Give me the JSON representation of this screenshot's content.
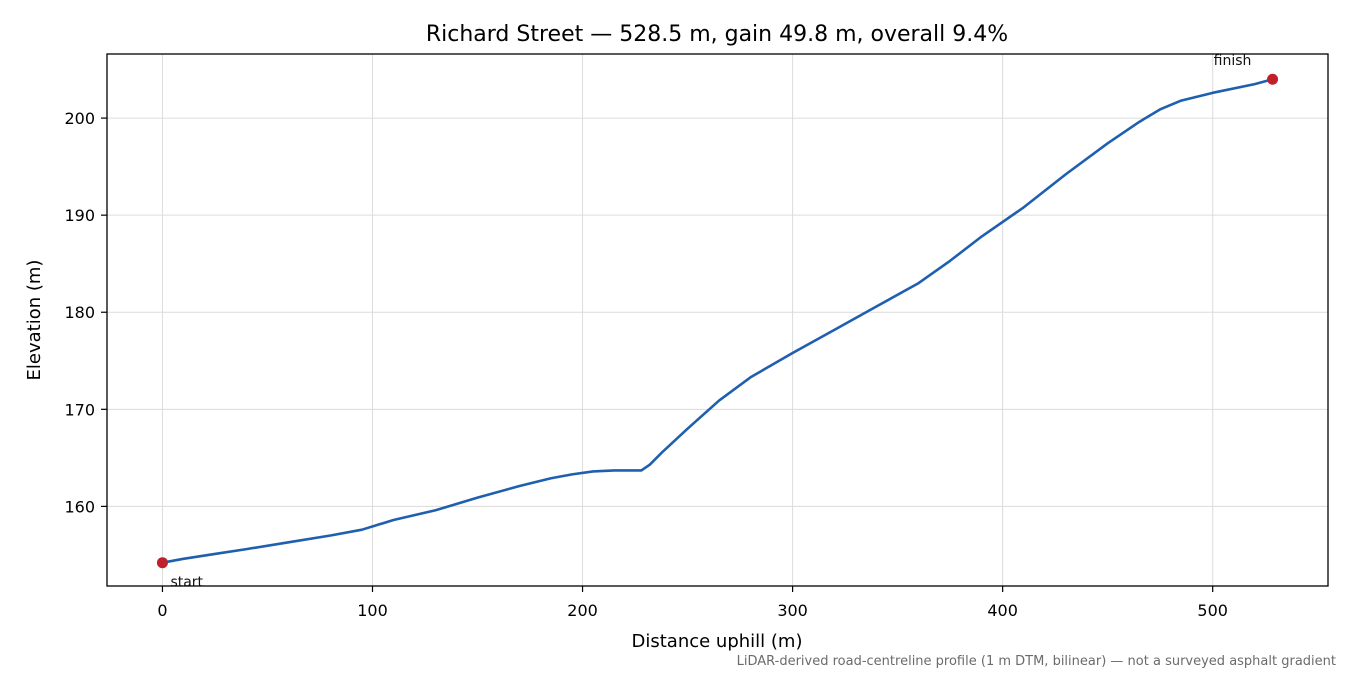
{
  "chart_data": {
    "type": "line",
    "title": "Richard Street — 528.5 m, gain 49.8 m, overall 9.4%",
    "xlabel": "Distance uphill (m)",
    "ylabel": "Elevation (m)",
    "xlim": [
      -26.4,
      554.9
    ],
    "ylim": [
      151.8,
      206.6
    ],
    "xticks": [
      0,
      100,
      200,
      300,
      400,
      500
    ],
    "yticks": [
      160,
      170,
      180,
      190,
      200
    ],
    "grid": true,
    "series": [
      {
        "color": "#1f5fb0",
        "x": [
          0,
          10,
          25,
          40,
          60,
          80,
          95,
          110,
          130,
          150,
          170,
          185,
          195,
          205,
          215,
          225,
          228,
          232,
          238,
          250,
          265,
          280,
          300,
          320,
          340,
          360,
          375,
          390,
          410,
          430,
          450,
          465,
          475,
          485,
          500,
          520,
          528.5
        ],
        "y": [
          154.2,
          154.6,
          155.1,
          155.6,
          156.3,
          157.0,
          157.6,
          158.6,
          159.6,
          160.9,
          162.1,
          162.9,
          163.3,
          163.6,
          163.7,
          163.7,
          163.7,
          164.3,
          165.6,
          168.0,
          170.9,
          173.3,
          175.8,
          178.2,
          180.6,
          183.0,
          185.3,
          187.8,
          190.8,
          194.2,
          197.4,
          199.6,
          200.9,
          201.8,
          202.6,
          203.5,
          204.0
        ]
      }
    ],
    "points": [
      {
        "x": 0,
        "y": 154.2,
        "label": "start"
      },
      {
        "x": 528.5,
        "y": 204.0,
        "label": "finish"
      }
    ],
    "endpoint_color": "#c0202a",
    "footnote": "LiDAR-derived road-centreline profile (1 m DTM, bilinear) — not a surveyed asphalt gradient"
  }
}
